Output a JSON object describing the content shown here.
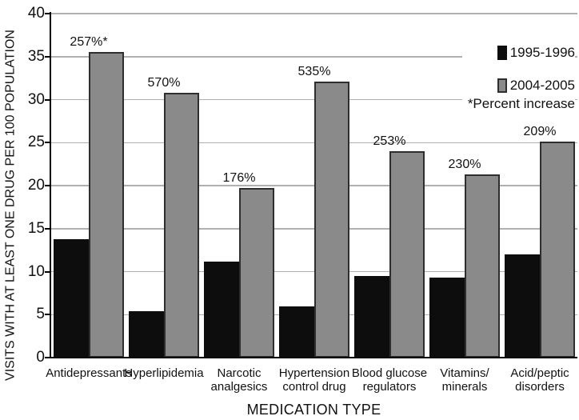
{
  "chart_data": {
    "type": "bar",
    "title": "",
    "xlabel": "MEDICATION TYPE",
    "ylabel": "VISITS WITH AT LEAST ONE DRUG PER 100 POPULATION",
    "ylim": [
      0,
      40
    ],
    "yticks": [
      0,
      5,
      10,
      15,
      20,
      25,
      30,
      35,
      40
    ],
    "grid": true,
    "legend_position": "top-right",
    "categories": [
      "Antidepressants",
      "Hyperlipidemia",
      "Narcotic\nanalgesics",
      "Hypertension\ncontrol drug",
      "Blood glucose\nregulators",
      "Vitamins/\nminerals",
      "Acid/peptic\ndisorders"
    ],
    "series": [
      {
        "name": "1995-1996",
        "color": "#0d0d0d",
        "values": [
          13.8,
          5.4,
          11.2,
          6.0,
          9.5,
          9.3,
          12.0
        ]
      },
      {
        "name": "2004-2005",
        "color": "#8a8a8a",
        "values": [
          35.5,
          30.8,
          19.7,
          32.1,
          24.0,
          21.3,
          25.1
        ]
      }
    ],
    "bar_labels": [
      "257%*",
      "570%",
      "176%",
      "535%",
      "253%",
      "230%",
      "209%"
    ],
    "legend_note": "*Percent increase",
    "colors": {
      "grid": "#b0b0b0",
      "axis": "#000000",
      "bar_border": "#2e2e2e",
      "text": "#111111",
      "background": "#ffffff"
    }
  }
}
